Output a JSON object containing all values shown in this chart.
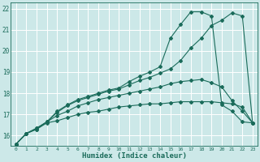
{
  "xlabel": "Humidex (Indice chaleur)",
  "bg_color": "#cce8e8",
  "grid_color": "#ffffff",
  "line_color": "#1a6b5a",
  "xlim": [
    -0.5,
    23.5
  ],
  "ylim": [
    15.5,
    22.3
  ],
  "line1_y": [
    15.6,
    16.1,
    16.3,
    16.6,
    16.7,
    16.85,
    17.0,
    17.1,
    17.15,
    17.25,
    17.35,
    17.4,
    17.45,
    17.5,
    17.5,
    17.55,
    17.6,
    17.6,
    17.6,
    17.6,
    17.55,
    17.5,
    17.35,
    16.6
  ],
  "line2_y": [
    15.6,
    16.1,
    16.3,
    16.65,
    16.95,
    17.15,
    17.4,
    17.55,
    17.7,
    17.8,
    17.9,
    18.0,
    18.1,
    18.2,
    18.3,
    18.45,
    18.55,
    18.6,
    18.65,
    18.5,
    18.3,
    17.65,
    17.15,
    16.6
  ],
  "line3_y": [
    15.6,
    16.1,
    16.35,
    16.65,
    17.15,
    17.45,
    17.7,
    17.85,
    18.0,
    18.15,
    18.25,
    18.55,
    18.8,
    19.0,
    19.25,
    20.6,
    21.25,
    21.85,
    21.85,
    21.65,
    17.45,
    17.15,
    16.65,
    16.6
  ],
  "line4_y": [
    15.6,
    16.1,
    16.35,
    16.65,
    17.1,
    17.42,
    17.65,
    17.8,
    17.95,
    18.1,
    18.2,
    18.4,
    18.6,
    18.75,
    18.95,
    19.15,
    19.55,
    20.15,
    20.6,
    21.2,
    21.45,
    21.8,
    21.65,
    16.6
  ],
  "yticks": [
    16,
    17,
    18,
    19,
    20,
    21,
    22
  ],
  "xticks": [
    0,
    1,
    2,
    3,
    4,
    5,
    6,
    7,
    8,
    9,
    10,
    11,
    12,
    13,
    14,
    15,
    16,
    17,
    18,
    19,
    20,
    21,
    22,
    23
  ]
}
